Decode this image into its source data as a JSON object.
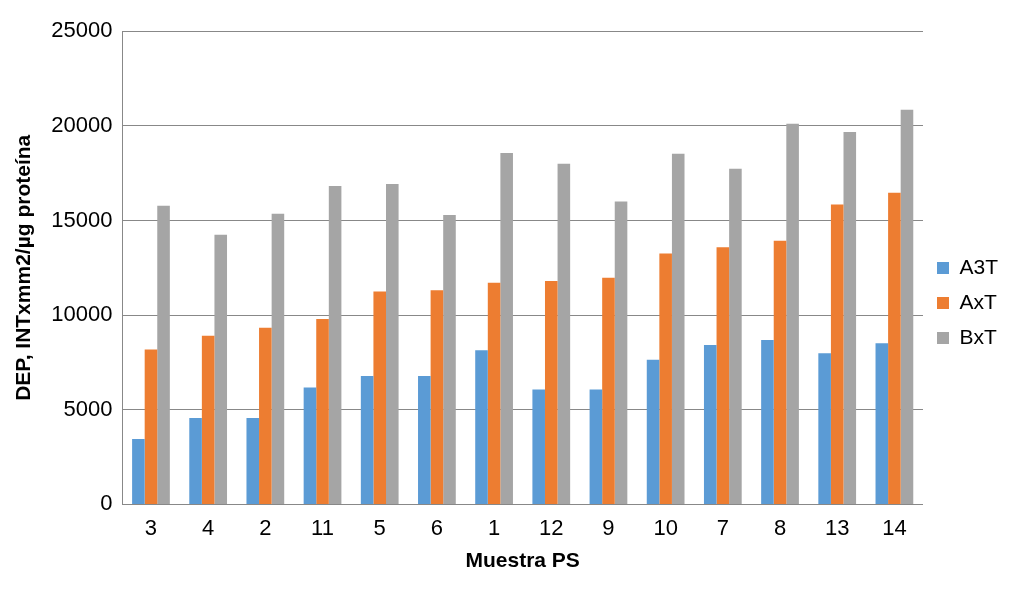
{
  "chart_data": {
    "type": "bar",
    "xlabel": "Muestra PS",
    "ylabel": "DEP, INTxmm2/µg proteína",
    "categories": [
      "3",
      "4",
      "2",
      "11",
      "5",
      "6",
      "1",
      "12",
      "9",
      "10",
      "7",
      "8",
      "13",
      "14"
    ],
    "series": [
      {
        "name": "A3T",
        "color": "#5b9bd5",
        "values": [
          3460,
          4560,
          4560,
          6180,
          6780,
          6780,
          8150,
          6070,
          6070,
          7640,
          8420,
          8690,
          7980,
          8510
        ]
      },
      {
        "name": "AxT",
        "color": "#ed7d31",
        "values": [
          8180,
          8910,
          9330,
          9800,
          11250,
          11310,
          11710,
          11800,
          11980,
          13250,
          13580,
          13930,
          15850,
          16470
        ]
      },
      {
        "name": "BxT",
        "color": "#a5a5a5",
        "values": [
          15780,
          14240,
          15350,
          16820,
          16930,
          15290,
          18560,
          18000,
          16000,
          18530,
          17730,
          20110,
          19670,
          20850
        ]
      }
    ],
    "ylim": [
      0,
      25000
    ],
    "yticks": [
      0,
      5000,
      10000,
      15000,
      20000,
      25000
    ],
    "grid": "y",
    "legend": "right"
  }
}
